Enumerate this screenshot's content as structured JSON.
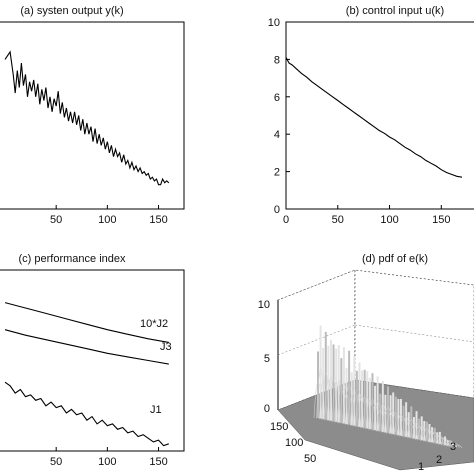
{
  "chart_data": [
    {
      "id": "a",
      "type": "line",
      "title": "(a) systen output y(k)",
      "xlim": [
        0,
        170
      ],
      "ylim": [
        0,
        10
      ],
      "xticks": [
        50,
        100,
        150
      ],
      "grid": false,
      "series": [
        {
          "values": [
            [
              0,
              8.0
            ],
            [
              5,
              8.4
            ],
            [
              8,
              7.2
            ],
            [
              10,
              6.2
            ],
            [
              12,
              7.4
            ],
            [
              14,
              6.5
            ],
            [
              16,
              7.8
            ],
            [
              18,
              6.6
            ],
            [
              20,
              7.2
            ],
            [
              22,
              6.0
            ],
            [
              24,
              6.8
            ],
            [
              26,
              6.3
            ],
            [
              28,
              6.9
            ],
            [
              30,
              6.0
            ],
            [
              32,
              6.7
            ],
            [
              34,
              5.6
            ],
            [
              36,
              6.4
            ],
            [
              38,
              5.8
            ],
            [
              40,
              6.5
            ],
            [
              42,
              5.4
            ],
            [
              44,
              6.0
            ],
            [
              46,
              5.2
            ],
            [
              48,
              5.9
            ],
            [
              50,
              5.5
            ],
            [
              52,
              6.3
            ],
            [
              54,
              5.1
            ],
            [
              56,
              5.7
            ],
            [
              58,
              4.9
            ],
            [
              60,
              5.4
            ],
            [
              62,
              4.7
            ],
            [
              64,
              5.2
            ],
            [
              66,
              4.6
            ],
            [
              68,
              5.2
            ],
            [
              70,
              4.5
            ],
            [
              72,
              5.0
            ],
            [
              74,
              4.2
            ],
            [
              76,
              4.8
            ],
            [
              78,
              4.0
            ],
            [
              80,
              4.6
            ],
            [
              82,
              4.0
            ],
            [
              84,
              4.4
            ],
            [
              86,
              3.6
            ],
            [
              88,
              4.3
            ],
            [
              90,
              3.5
            ],
            [
              92,
              4.0
            ],
            [
              94,
              3.4
            ],
            [
              96,
              3.8
            ],
            [
              98,
              3.2
            ],
            [
              100,
              3.6
            ],
            [
              102,
              3.0
            ],
            [
              104,
              3.4
            ],
            [
              106,
              2.8
            ],
            [
              108,
              3.2
            ],
            [
              110,
              2.8
            ],
            [
              112,
              3.0
            ],
            [
              114,
              2.5
            ],
            [
              116,
              2.9
            ],
            [
              118,
              2.4
            ],
            [
              120,
              2.6
            ],
            [
              122,
              2.2
            ],
            [
              124,
              2.5
            ],
            [
              126,
              2.1
            ],
            [
              128,
              2.3
            ],
            [
              130,
              2.0
            ],
            [
              132,
              2.2
            ],
            [
              134,
              1.9
            ],
            [
              136,
              2.0
            ],
            [
              138,
              1.8
            ],
            [
              140,
              1.9
            ],
            [
              142,
              1.6
            ],
            [
              144,
              1.7
            ],
            [
              146,
              1.5
            ],
            [
              148,
              1.6
            ],
            [
              150,
              1.3
            ],
            [
              152,
              1.3
            ],
            [
              154,
              1.6
            ],
            [
              156,
              1.4
            ],
            [
              158,
              1.5
            ],
            [
              160,
              1.4
            ]
          ]
        }
      ]
    },
    {
      "id": "b",
      "type": "line",
      "title": "(b) control input u(k)",
      "xlim": [
        0,
        170
      ],
      "ylim": [
        0,
        10
      ],
      "xticks": [
        0,
        50,
        100,
        150
      ],
      "yticks": [
        0,
        2,
        4,
        6,
        8,
        10
      ],
      "grid": false,
      "series": [
        {
          "values": [
            [
              0,
              8.1
            ],
            [
              3,
              7.8
            ],
            [
              6,
              7.7
            ],
            [
              10,
              7.5
            ],
            [
              15,
              7.25
            ],
            [
              20,
              7.05
            ],
            [
              25,
              6.8
            ],
            [
              30,
              6.6
            ],
            [
              35,
              6.4
            ],
            [
              40,
              6.2
            ],
            [
              45,
              6.0
            ],
            [
              50,
              5.8
            ],
            [
              55,
              5.6
            ],
            [
              60,
              5.4
            ],
            [
              65,
              5.2
            ],
            [
              70,
              5.0
            ],
            [
              75,
              4.8
            ],
            [
              80,
              4.6
            ],
            [
              85,
              4.4
            ],
            [
              90,
              4.2
            ],
            [
              95,
              4.05
            ],
            [
              100,
              3.85
            ],
            [
              105,
              3.7
            ],
            [
              110,
              3.5
            ],
            [
              115,
              3.3
            ],
            [
              120,
              3.15
            ],
            [
              125,
              2.95
            ],
            [
              130,
              2.8
            ],
            [
              135,
              2.6
            ],
            [
              140,
              2.45
            ],
            [
              145,
              2.3
            ],
            [
              150,
              2.1
            ],
            [
              155,
              1.95
            ],
            [
              160,
              1.85
            ],
            [
              165,
              1.75
            ],
            [
              170,
              1.7
            ]
          ]
        }
      ]
    },
    {
      "id": "c",
      "type": "line",
      "title": "(c) performance index",
      "xlim": [
        0,
        170
      ],
      "ylim": [
        0,
        10
      ],
      "xticks": [
        50,
        100,
        150
      ],
      "grid": false,
      "annotations": [
        "10*J2",
        "J3",
        "J1"
      ],
      "series": [
        {
          "name": "10*J2",
          "values": [
            [
              0,
              8.2
            ],
            [
              20,
              7.9
            ],
            [
              40,
              7.6
            ],
            [
              60,
              7.3
            ],
            [
              80,
              7.0
            ],
            [
              100,
              6.7
            ],
            [
              120,
              6.45
            ],
            [
              140,
              6.2
            ],
            [
              160,
              6.0
            ]
          ]
        },
        {
          "name": "J3",
          "values": [
            [
              0,
              6.7
            ],
            [
              20,
              6.4
            ],
            [
              40,
              6.15
            ],
            [
              60,
              5.9
            ],
            [
              80,
              5.65
            ],
            [
              100,
              5.4
            ],
            [
              120,
              5.2
            ],
            [
              140,
              5.0
            ],
            [
              160,
              4.8
            ]
          ]
        },
        {
          "name": "J1",
          "values": [
            [
              0,
              3.8
            ],
            [
              5,
              3.6
            ],
            [
              10,
              3.2
            ],
            [
              15,
              3.4
            ],
            [
              20,
              3.0
            ],
            [
              25,
              3.1
            ],
            [
              30,
              2.8
            ],
            [
              35,
              2.9
            ],
            [
              40,
              2.5
            ],
            [
              45,
              2.7
            ],
            [
              50,
              2.4
            ],
            [
              55,
              2.5
            ],
            [
              60,
              2.1
            ],
            [
              65,
              2.3
            ],
            [
              70,
              2.0
            ],
            [
              75,
              2.1
            ],
            [
              80,
              1.7
            ],
            [
              85,
              1.9
            ],
            [
              90,
              1.5
            ],
            [
              95,
              1.7
            ],
            [
              100,
              1.4
            ],
            [
              105,
              1.5
            ],
            [
              110,
              1.2
            ],
            [
              115,
              1.3
            ],
            [
              120,
              1.0
            ],
            [
              125,
              1.1
            ],
            [
              130,
              0.8
            ],
            [
              135,
              0.9
            ],
            [
              140,
              0.7
            ],
            [
              145,
              0.5
            ],
            [
              150,
              0.6
            ],
            [
              155,
              0.3
            ],
            [
              160,
              0.4
            ]
          ]
        }
      ]
    },
    {
      "id": "d",
      "type": "surface3d",
      "title": "(d) pdf of e(k)",
      "zlim": [
        0,
        10
      ],
      "zticks": [
        0,
        5,
        10
      ],
      "kticks": [
        50,
        100,
        150
      ],
      "eticks": [
        1,
        2,
        3
      ]
    }
  ]
}
